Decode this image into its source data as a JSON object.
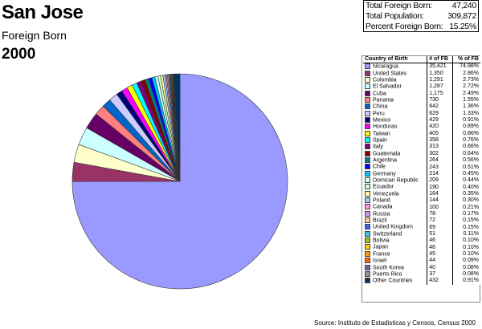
{
  "title": "San Jose",
  "subtitle": "Foreign Born",
  "year": "2000",
  "stats": [
    {
      "label": "Total Foreign Born:",
      "value": "47,240"
    },
    {
      "label": "Total Population:",
      "value": "309,872"
    },
    {
      "label": "Percent Foreign Born:",
      "value": "15.25%"
    }
  ],
  "source": "Source: Instituto de Estadisticas y Censos, Census 2000",
  "chart_data": {
    "type": "pie",
    "headers": [
      "Country of Birth",
      "# of FB",
      "% of FB"
    ],
    "slices": [
      {
        "name": "Nicaragua",
        "count": "35,421",
        "value": 35421,
        "pct": "74.98%",
        "color": "#9999FF"
      },
      {
        "name": "United States",
        "count": "1,350",
        "value": 1350,
        "pct": "2.86%",
        "color": "#993366"
      },
      {
        "name": "Colombia",
        "count": "1,291",
        "value": 1291,
        "pct": "2.73%",
        "color": "#FFFFCC"
      },
      {
        "name": "El Salvador",
        "count": "1,287",
        "value": 1287,
        "pct": "2.72%",
        "color": "#CCFFFF"
      },
      {
        "name": "Cuba",
        "count": "1,175",
        "value": 1175,
        "pct": "2.49%",
        "color": "#660066"
      },
      {
        "name": "Panama",
        "count": "730",
        "value": 730,
        "pct": "1.55%",
        "color": "#FF8080"
      },
      {
        "name": "China",
        "count": "642",
        "value": 642,
        "pct": "1.36%",
        "color": "#0066CC"
      },
      {
        "name": "Peru",
        "count": "629",
        "value": 629,
        "pct": "1.33%",
        "color": "#CCCCFF"
      },
      {
        "name": "Mexico",
        "count": "429",
        "value": 429,
        "pct": "0.91%",
        "color": "#000080"
      },
      {
        "name": "Honduras",
        "count": "420",
        "value": 420,
        "pct": "0.89%",
        "color": "#FF00FF"
      },
      {
        "name": "Taiwan",
        "count": "405",
        "value": 405,
        "pct": "0.86%",
        "color": "#FFFF00"
      },
      {
        "name": "Spain",
        "count": "358",
        "value": 358,
        "pct": "0.76%",
        "color": "#00FFFF"
      },
      {
        "name": "Italy",
        "count": "313",
        "value": 313,
        "pct": "0.66%",
        "color": "#800080"
      },
      {
        "name": "Guatemala",
        "count": "302",
        "value": 302,
        "pct": "0.64%",
        "color": "#800000"
      },
      {
        "name": "Argentina",
        "count": "264",
        "value": 264,
        "pct": "0.56%",
        "color": "#008080"
      },
      {
        "name": "Chile",
        "count": "243",
        "value": 243,
        "pct": "0.51%",
        "color": "#0000FF"
      },
      {
        "name": "Germany",
        "count": "214",
        "value": 214,
        "pct": "0.45%",
        "color": "#00CCFF"
      },
      {
        "name": "Domican Republic",
        "count": "209",
        "value": 209,
        "pct": "0.44%",
        "color": "#CCFFFF"
      },
      {
        "name": "Ecuador",
        "count": "190",
        "value": 190,
        "pct": "0.40%",
        "color": "#CCFFCC"
      },
      {
        "name": "Venezuela",
        "count": "164",
        "value": 164,
        "pct": "0.35%",
        "color": "#FFFF99"
      },
      {
        "name": "Poland",
        "count": "144",
        "value": 144,
        "pct": "0.30%",
        "color": "#99CCFF"
      },
      {
        "name": "Canada",
        "count": "100",
        "value": 100,
        "pct": "0.21%",
        "color": "#FF99CC"
      },
      {
        "name": "Russia",
        "count": "78",
        "value": 78,
        "pct": "0.17%",
        "color": "#CC99FF"
      },
      {
        "name": "Brazil",
        "count": "72",
        "value": 72,
        "pct": "0.15%",
        "color": "#FFCC99"
      },
      {
        "name": "United Kingdom",
        "count": "69",
        "value": 69,
        "pct": "0.15%",
        "color": "#3366FF"
      },
      {
        "name": "Switzerland",
        "count": "51",
        "value": 51,
        "pct": "0.11%",
        "color": "#33CCCC"
      },
      {
        "name": "Bolivia",
        "count": "46",
        "value": 46,
        "pct": "0.10%",
        "color": "#99CC00"
      },
      {
        "name": "Japan",
        "count": "46",
        "value": 46,
        "pct": "0.10%",
        "color": "#FFCC00"
      },
      {
        "name": "France",
        "count": "45",
        "value": 45,
        "pct": "0.10%",
        "color": "#FF9900"
      },
      {
        "name": "Israel",
        "count": "44",
        "value": 44,
        "pct": "0.09%",
        "color": "#FF6600"
      },
      {
        "name": "South Korea",
        "count": "40",
        "value": 40,
        "pct": "0.08%",
        "color": "#666699"
      },
      {
        "name": "Puerto Rico",
        "count": "37",
        "value": 37,
        "pct": "0.08%",
        "color": "#969696"
      },
      {
        "name": "Other Countries",
        "count": "432",
        "value": 432,
        "pct": "0.91%",
        "color": "#003366"
      }
    ]
  }
}
